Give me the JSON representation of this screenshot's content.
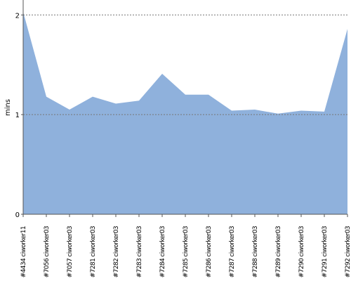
{
  "chart_data": {
    "type": "area",
    "y_label": "mins",
    "categories": [
      "#4434 ciworker11",
      "#7056 ciworker03",
      "#7057 ciworker03",
      "#7281 ciworker03",
      "#7282 ciworker03",
      "#7283 ciworker03",
      "#7284 ciworker03",
      "#7285 ciworker03",
      "#7286 ciworker03",
      "#7287 ciworker03",
      "#7288 ciworker03",
      "#7289 ciworker03",
      "#7290 ciworker03",
      "#7291 ciworker03",
      "#7292 ciworker03"
    ],
    "values": [
      2.03,
      1.18,
      1.05,
      1.18,
      1.11,
      1.14,
      1.41,
      1.2,
      1.2,
      1.04,
      1.05,
      1.01,
      1.04,
      1.03,
      1.86
    ],
    "color": "#8fb1dc",
    "ylim": [
      0,
      2.15
    ],
    "yticks": [
      0,
      1,
      2
    ],
    "grid": true
  }
}
